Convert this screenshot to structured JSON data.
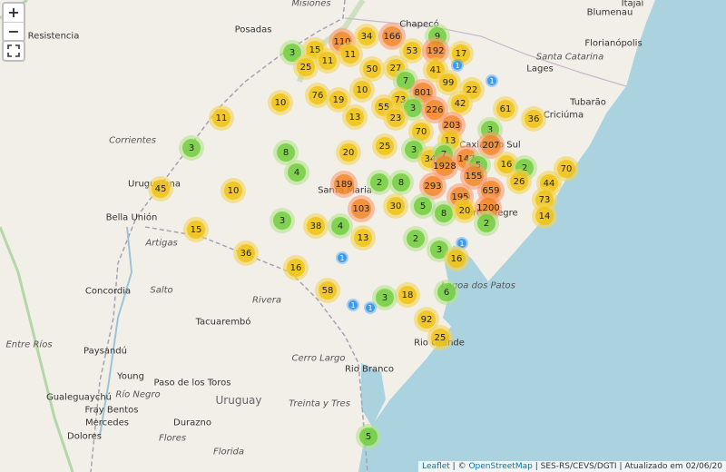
{
  "zoom_controls": {
    "zoom_in": "+",
    "zoom_out": "−"
  },
  "place_labels": [
    "Resistencia",
    "Posadas",
    "Misiones",
    "Chapecó",
    "Blumenau",
    "Itajaí",
    "Florianópolis",
    "Santa Catarina",
    "Lages",
    "Tubarão",
    "Criciúma",
    "Corrientes",
    "Uruguaiana",
    "Bella Unión",
    "Artigas",
    "Rivera",
    "Concordia",
    "Salto",
    "Tacuarembó",
    "Paysandú",
    "Entre Ríos",
    "Cerro Largo",
    "Young",
    "Paso de los Toros",
    "Río Negro",
    "Uruguay",
    "Gualeguaychú",
    "Fray Bentos",
    "Mercedes",
    "Durazno",
    "Dolores",
    "Flores",
    "Florida",
    "Treinta y Tres",
    "Rio Branco",
    "Santa Maria",
    "Caxias do Sul",
    "Porto Alegre",
    "Lagoa dos Patos",
    "Rio Grande"
  ],
  "clusters": [
    110,
    34,
    166,
    9,
    15,
    3,
    11,
    11,
    53,
    192,
    17,
    1,
    25,
    50,
    27,
    41,
    1,
    7,
    99,
    76,
    10,
    801,
    22,
    10,
    19,
    73,
    55,
    3,
    226,
    42,
    61,
    11,
    13,
    23,
    36,
    203,
    3,
    70,
    13,
    207,
    3,
    8,
    20,
    25,
    3,
    34,
    7,
    147,
    1928,
    5,
    16,
    2,
    70,
    4,
    155,
    26,
    189,
    2,
    8,
    293,
    45,
    10,
    659,
    44,
    195,
    73,
    103,
    30,
    5,
    8,
    20,
    1200,
    14,
    3,
    38,
    4,
    2,
    15,
    13,
    2,
    3,
    1,
    36,
    1,
    16,
    16,
    58,
    18,
    3,
    6,
    1,
    1,
    92,
    25,
    5
  ],
  "attribution": {
    "leaflet": "Leaflet",
    "copy": "| ©",
    "osm": "OpenStreetMap",
    "rest": "| SES-RS/CEVS/DGTI | Atualizado em 02/06/20"
  }
}
